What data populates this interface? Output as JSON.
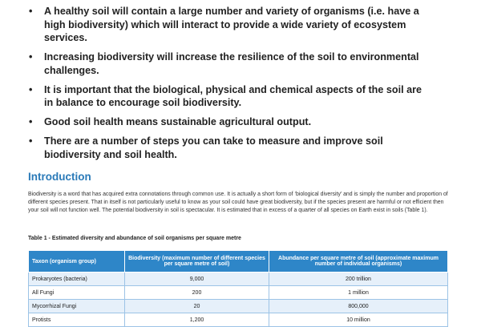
{
  "bullets": [
    "A healthy soil will contain a large number and variety of organisms (i.e. have a high biodiversity) which will interact to provide a wide variety of ecosystem services.",
    "Increasing biodiversity will increase the resilience of the soil to environmental challenges.",
    "It is important that the biological, physical and chemical aspects of the soil are in balance to encourage soil biodiversity.",
    "Good soil health means sustainable agricultural output.",
    "There are a number of steps you can take to measure and improve soil biodiversity and soil health."
  ],
  "section": {
    "heading": "Introduction",
    "paragraph": "Biodiversity is a word that has acquired extra connotations through common use. It is actually a short form of ‘biological diversity’ and is simply the number and proportion of different species present. That in itself is not particularly useful to know as your soil could have great biodiversity, but if the species present are harmful or not efficient then your soil will not function well. The potential biodiversity in soil is spectacular. It is estimated that in excess of a quarter of all species on Earth exist in soils (Table 1)."
  },
  "table": {
    "caption": "Table 1 - Estimated diversity and abundance of soil organisms per square metre",
    "header": [
      "Taxon (organism group)",
      "Biodiversity (maximum number of different species per square metre of soil)",
      "Abundance per square metre of soil (approximate maximum number of individual organisms)"
    ],
    "rows": [
      [
        "Prokaryotes (bacteria)",
        "9,000",
        "200 trillion"
      ],
      [
        "All Fungi",
        "200",
        "1 million"
      ],
      [
        "Mycorrhizal Fungi",
        "20",
        "800,000"
      ],
      [
        "Protists",
        "1,200",
        "10 million"
      ]
    ]
  }
}
